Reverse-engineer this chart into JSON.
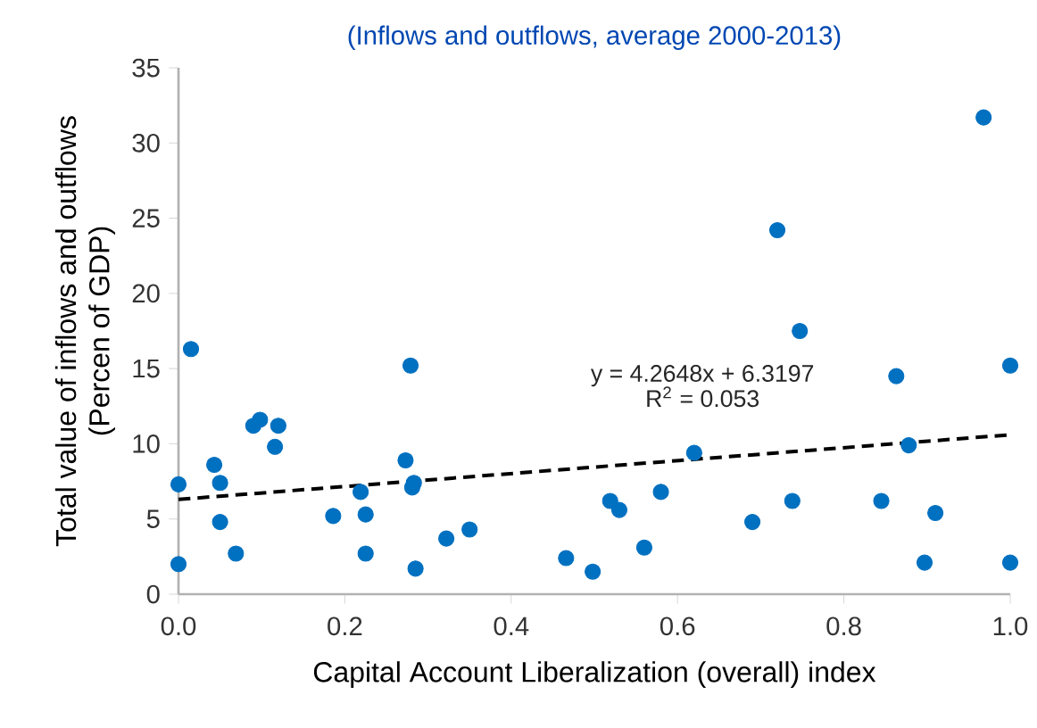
{
  "chart_data": {
    "type": "scatter",
    "title": "(Inflows and outflows, average 2000-2013)",
    "xlabel": "Capital Account  Liberalization (overall) index",
    "ylabel": "Total value of inflows and outflows (Percen of GDP)",
    "annotations": [
      "y = 4.2648x + 6.3197",
      "R$^{2}$ = 0.053"
    ],
    "xlim": [
      0,
      1
    ],
    "ylim": [
      0,
      35
    ],
    "xticks": [
      {
        "value": 0,
        "label": "0.0"
      },
      {
        "value": 0.2,
        "label": "0.2"
      },
      {
        "value": 0.4,
        "label": "0.4"
      },
      {
        "value": 0.6,
        "label": "0.6"
      },
      {
        "value": 0.8,
        "label": "0.8"
      },
      {
        "value": 1,
        "label": "1.0"
      }
    ],
    "yticks": [
      0,
      5,
      10,
      15,
      20,
      25,
      30,
      35
    ],
    "grid": false,
    "legend": false,
    "series": [
      {
        "color": "#0070c0",
        "marker": "circle",
        "x": [
          0.0,
          0.0,
          0.015,
          0.043,
          0.05,
          0.05,
          0.069,
          0.09,
          0.098,
          0.12,
          0.116,
          0.186,
          0.219,
          0.225,
          0.225,
          0.273,
          0.279,
          0.283,
          0.281,
          0.285,
          0.322,
          0.35,
          0.466,
          0.498,
          0.519,
          0.53,
          0.56,
          0.58,
          0.62,
          0.69,
          0.72,
          0.738,
          0.747,
          0.845,
          0.863,
          0.878,
          0.897,
          0.91,
          0.968,
          1.0,
          1.0
        ],
        "values": [
          7.3,
          2.0,
          16.3,
          8.6,
          7.4,
          4.8,
          2.7,
          11.2,
          11.6,
          11.2,
          9.8,
          5.2,
          6.8,
          5.3,
          2.7,
          8.9,
          15.2,
          7.4,
          7.1,
          1.7,
          3.7,
          4.3,
          2.4,
          1.5,
          6.2,
          5.6,
          3.1,
          6.8,
          9.4,
          4.8,
          24.2,
          6.2,
          17.5,
          6.2,
          14.5,
          9.9,
          2.1,
          5.4,
          31.7,
          15.2,
          2.1
        ]
      },
      {
        "type": "line",
        "color": "#000000",
        "line_style": "dashed",
        "marker": "none",
        "x": [
          0,
          1
        ],
        "values": [
          6.3,
          10.6
        ]
      }
    ]
  }
}
